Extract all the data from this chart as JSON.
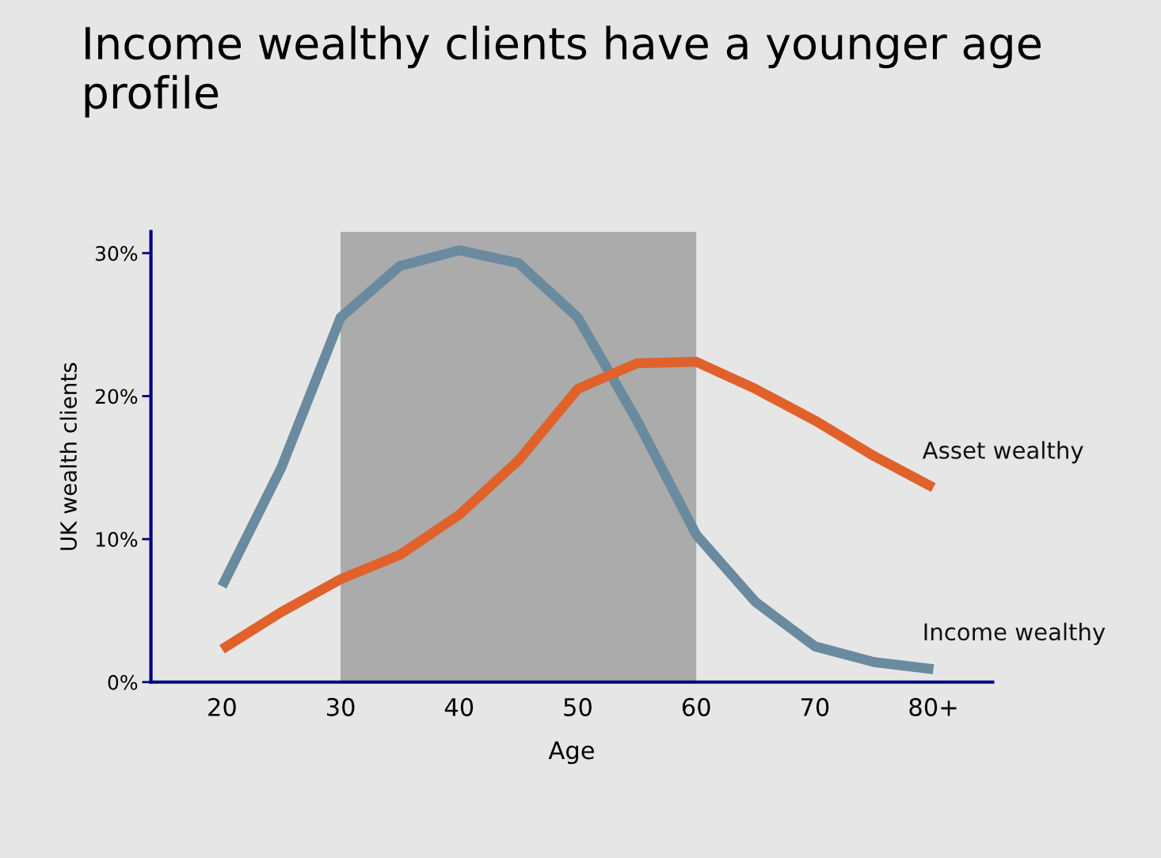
{
  "chart_data": {
    "type": "line",
    "title": "Income wealthy clients have a younger age profile",
    "xlabel": "Age",
    "ylabel": "UK wealth clients",
    "x": [
      20,
      25,
      30,
      35,
      40,
      45,
      50,
      55,
      60,
      65,
      70,
      75,
      80
    ],
    "series": [
      {
        "name": "Income wealthy",
        "color": "#6a8a9f",
        "values": [
          6.7,
          15.0,
          25.5,
          29.1,
          30.2,
          29.3,
          25.5,
          18.3,
          10.3,
          5.6,
          2.5,
          1.4,
          0.9
        ]
      },
      {
        "name": "Asset wealthy",
        "color": "#e0622a",
        "values": [
          2.3,
          4.9,
          7.2,
          8.9,
          11.7,
          15.5,
          20.5,
          22.3,
          22.4,
          20.5,
          18.3,
          15.8,
          13.6
        ]
      }
    ],
    "xlim": [
      14,
      85
    ],
    "ylim": [
      0,
      31.5
    ],
    "xticks": [
      20,
      30,
      40,
      50,
      60,
      70,
      {
        "value": 80,
        "label": "80+"
      }
    ],
    "yticks": [
      {
        "value": 0,
        "label": "0%"
      },
      {
        "value": 10,
        "label": "10%"
      },
      {
        "value": 20,
        "label": "20%"
      },
      {
        "value": 30,
        "label": "30%"
      }
    ],
    "bands": [
      {
        "axis": "x",
        "from": 30,
        "to": 60,
        "color": "#ababab"
      }
    ],
    "grid": false,
    "legend": false,
    "marker": "none",
    "line_style": "solid"
  }
}
